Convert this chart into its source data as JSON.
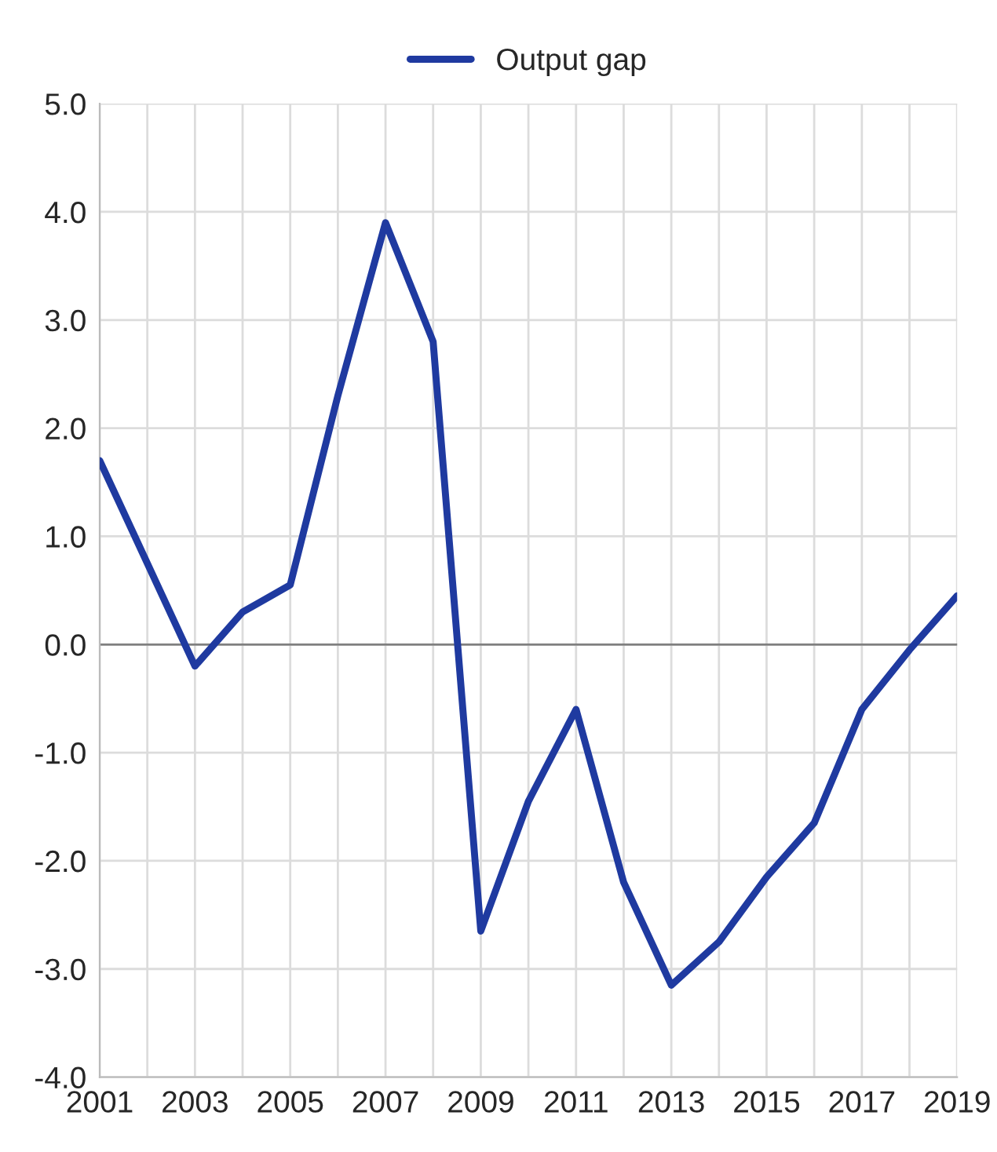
{
  "chart_data": {
    "type": "line",
    "x": [
      2001,
      2002,
      2003,
      2004,
      2005,
      2006,
      2007,
      2008,
      2009,
      2010,
      2011,
      2012,
      2013,
      2014,
      2015,
      2016,
      2017,
      2018,
      2019
    ],
    "series": [
      {
        "name": "Output gap",
        "color": "#1f3aa0",
        "values": [
          1.7,
          0.75,
          -0.2,
          0.3,
          0.55,
          2.3,
          3.9,
          2.8,
          -2.65,
          -1.45,
          -0.6,
          -2.2,
          -3.15,
          -2.75,
          -2.15,
          -1.65,
          -0.6,
          -0.05,
          0.45
        ]
      }
    ],
    "xlim": [
      2001,
      2019
    ],
    "xticks": [
      2001,
      {
        "value": 2002,
        "label": null
      },
      2003,
      {
        "value": 2004,
        "label": null
      },
      2005,
      {
        "value": 2006,
        "label": null
      },
      2007,
      {
        "value": 2008,
        "label": null
      },
      2009,
      {
        "value": 2010,
        "label": null
      },
      2011,
      {
        "value": 2012,
        "label": null
      },
      2013,
      {
        "value": 2014,
        "label": null
      },
      2015,
      {
        "value": 2016,
        "label": null
      },
      2017,
      {
        "value": 2018,
        "label": null
      },
      2019
    ],
    "ylim": [
      -4.0,
      5.0
    ],
    "yticks": [
      {
        "value": -4,
        "label": "-4.0"
      },
      {
        "value": -3,
        "label": "-3.0"
      },
      {
        "value": -2,
        "label": "-2.0"
      },
      {
        "value": -1,
        "label": "-1.0"
      },
      {
        "value": 0,
        "label": "0.0"
      },
      {
        "value": 1,
        "label": "1.0"
      },
      {
        "value": 2,
        "label": "2.0"
      },
      {
        "value": 3,
        "label": "3.0"
      },
      {
        "value": 4,
        "label": "4.0"
      },
      {
        "value": 5,
        "label": "5.0"
      }
    ],
    "ref_lines": [
      {
        "axis": "y",
        "value": 0.0,
        "color": "#808080"
      }
    ],
    "grid": true,
    "legend": "top",
    "marker": "none",
    "line_style": "solid"
  }
}
